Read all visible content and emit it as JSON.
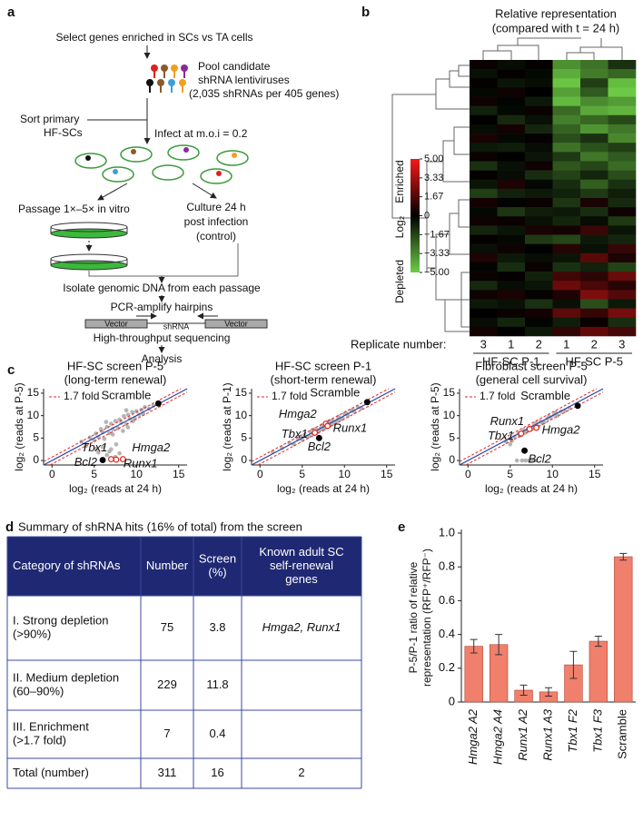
{
  "panel_labels": [
    "a",
    "b",
    "c",
    "d",
    "e"
  ],
  "diagram": {
    "select": "Select genes enriched in SCs vs TA cells",
    "pool": [
      "Pool candidate",
      "shRNA lentiviruses",
      "(2,035 shRNAs per 405 genes)"
    ],
    "sort": [
      "Sort primary",
      "HF-SCs"
    ],
    "infect": "Infect at m.o.i = 0.2",
    "passage": "Passage 1×–5× in vitro",
    "culture": [
      "Culture 24 h",
      "post infection",
      "(control)"
    ],
    "isolate": "Isolate genomic DNA from each passage",
    "pcr": "PCR-amplify hairpins",
    "construct": [
      "Vector",
      "shRNA",
      "Vector"
    ],
    "sequencing": "High-throughput sequencing",
    "analysis": "Analysis"
  },
  "chart_data": [
    {
      "type": "heatmap",
      "title": "Relative representation",
      "subtitle": "(compared with t = 24 h)",
      "column_axis_label": "Replicate number:",
      "columns": [
        "3",
        "1",
        "2",
        "1",
        "2",
        "3"
      ],
      "groups": [
        "HF-SC P-1",
        "HF-SC P-5"
      ],
      "clim": [
        -5,
        5
      ],
      "colorbar": {
        "title": "Log₂",
        "upper_label": "Enriched",
        "lower_label": "Depleted",
        "ticks": [
          {
            "value": 5,
            "label": "5.00"
          },
          {
            "value": 3.33,
            "label": "3.33"
          },
          {
            "value": 1.67,
            "label": "1.67"
          },
          0,
          {
            "value": -1.67,
            "label": "−1.67"
          },
          {
            "value": -3.33,
            "label": "−3.33"
          },
          {
            "value": -5,
            "label": "−5.00"
          }
        ]
      },
      "values": [
        [
          0.2,
          -0.3,
          0.1,
          -3.5,
          -2.8,
          -1.2
        ],
        [
          -0.4,
          0.1,
          -0.2,
          -4.2,
          -3.0,
          -2.5
        ],
        [
          0.1,
          -0.5,
          -0.3,
          -4.8,
          -1.5,
          -4.6
        ],
        [
          -0.2,
          0.3,
          0.0,
          -3.9,
          -2.2,
          -4.9
        ],
        [
          0.3,
          -0.1,
          -0.6,
          -4.5,
          -3.4,
          -3.8
        ],
        [
          -0.8,
          -0.2,
          0.2,
          -2.6,
          -4.1,
          -4.4
        ],
        [
          0.0,
          -1.0,
          -0.4,
          -3.1,
          -2.5,
          -1.8
        ],
        [
          -0.3,
          0.4,
          -0.9,
          -2.4,
          -3.6,
          -2.9
        ],
        [
          0.5,
          -0.2,
          0.1,
          -1.9,
          -1.2,
          -3.3
        ],
        [
          -0.6,
          -0.7,
          -0.3,
          -2.8,
          -2.0,
          -1.5
        ],
        [
          0.2,
          0.0,
          -0.5,
          -1.4,
          -2.9,
          -2.2
        ],
        [
          -1.2,
          -0.4,
          0.3,
          -2.1,
          -1.7,
          -2.6
        ],
        [
          0.1,
          -0.3,
          -1.1,
          -1.6,
          -0.9,
          -1.9
        ],
        [
          -0.5,
          0.6,
          -0.2,
          -1.1,
          -2.3,
          -1.2
        ],
        [
          -1.5,
          -0.8,
          -0.6,
          -0.8,
          -1.4,
          -0.7
        ],
        [
          0.4,
          -0.1,
          0.2,
          -1.3,
          0.5,
          -1.0
        ],
        [
          -0.2,
          -1.3,
          -0.7,
          -0.6,
          -1.1,
          0.3
        ],
        [
          0.3,
          0.2,
          -0.4,
          -0.9,
          -0.3,
          -1.4
        ],
        [
          -0.9,
          -0.5,
          0.5,
          0.4,
          1.2,
          -0.5
        ],
        [
          0.1,
          -0.2,
          -1.4,
          -1.7,
          -0.6,
          -0.9
        ],
        [
          -0.4,
          0.3,
          0.0,
          0.8,
          -0.4,
          1.1
        ],
        [
          0.6,
          -0.6,
          -0.3,
          -0.5,
          1.8,
          0.6
        ],
        [
          -0.1,
          -1.1,
          0.2,
          -1.2,
          -0.8,
          -1.6
        ],
        [
          0.2,
          0.1,
          -0.8,
          1.3,
          0.9,
          2.1
        ],
        [
          -1.0,
          -0.3,
          -0.5,
          2.2,
          1.5,
          0.8
        ],
        [
          0.3,
          0.5,
          0.1,
          0.6,
          2.6,
          1.7
        ],
        [
          -0.6,
          -0.4,
          -1.2,
          -0.4,
          -1.9,
          -0.6
        ],
        [
          0.0,
          0.2,
          0.4,
          1.9,
          1.1,
          2.4
        ],
        [
          -0.3,
          -0.9,
          -0.1,
          -0.7,
          0.2,
          -1.1
        ],
        [
          0.4,
          0.0,
          -0.6,
          1.0,
          2.0,
          1.4
        ]
      ]
    },
    {
      "type": "scatter",
      "title": "HF-SC screen P-5",
      "subtitle": "(long-term renewal)",
      "xlabel": "log₂ (reads at 24 h)",
      "ylabel": "log₂ (reads at P-5)",
      "xlim": [
        -1,
        16
      ],
      "ylim": [
        -1,
        16
      ],
      "xticks": [
        0,
        5,
        10,
        15
      ],
      "yticks": [
        0,
        5,
        10,
        15
      ],
      "identity_color": "#2a45a8",
      "fold": {
        "value": 1.7,
        "label": "1.7 fold",
        "color": "#e02424"
      },
      "points": {
        "color": "#b5b5b5",
        "x": [
          3.5,
          4,
          4.5,
          5,
          5.2,
          5.5,
          5.8,
          6,
          6.2,
          6.5,
          6.8,
          7,
          7.2,
          7.5,
          7.8,
          8,
          8.2,
          8.5,
          8.8,
          9,
          9.2,
          9.5,
          9.8,
          10,
          10.3,
          10.6,
          11,
          11.5,
          12,
          5.5,
          6.5,
          7,
          7.5,
          8,
          6,
          6.8,
          7.6,
          5.2,
          9,
          8.4,
          10.8,
          7.2,
          6.4,
          8.8,
          9.6
        ],
        "y": [
          4.2,
          3.2,
          5.1,
          4.5,
          6,
          5.2,
          7,
          6.3,
          4.8,
          7.5,
          6.1,
          8.2,
          7,
          8.8,
          7.2,
          9.1,
          8.4,
          9.9,
          8.1,
          10.2,
          9.3,
          10.8,
          9.5,
          11,
          10.2,
          11.3,
          11.9,
          11.5,
          12.2,
          1.8,
          1.2,
          2.5,
          0.8,
          1.6,
          3,
          2,
          3.6,
          2.6,
          7.4,
          6.6,
          10.4,
          5.8,
          8.6,
          11.2,
          8.8
        ]
      },
      "highlights": [
        {
          "name": "Scramble",
          "x": 12.6,
          "y": 12.7,
          "color": "#000000",
          "filled": true
        },
        {
          "name": "Tbx1",
          "x": 7,
          "y": 0.3,
          "color": "#e03020",
          "filled": false
        },
        {
          "name": "Hmga2",
          "x": 8.4,
          "y": 0.3,
          "color": "#e03020",
          "filled": false
        },
        {
          "name": "Runx1",
          "x": 7.6,
          "y": 0.2,
          "color": "#e03020",
          "filled": false
        },
        {
          "name": "Bcl2",
          "x": 6,
          "y": 0.1,
          "color": "#000000",
          "filled": true
        }
      ]
    },
    {
      "type": "scatter",
      "title": "HF-SC screen P-1",
      "subtitle": "(short-term renewal)",
      "xlabel": "log₂ (reads at 24 h)",
      "ylabel": "log₂ (reads at P-1)",
      "xlim": [
        -1,
        16
      ],
      "ylim": [
        -1,
        16
      ],
      "xticks": [
        0,
        5,
        10,
        15
      ],
      "yticks": [
        0,
        5,
        10,
        15
      ],
      "identity_color": "#2a45a8",
      "fold": {
        "value": 1.7,
        "label": "1.7 fold",
        "color": "#e02424"
      },
      "points": {
        "color": "#b5b5b5",
        "x": [
          4,
          4.5,
          5,
          5.3,
          5.6,
          6,
          6.3,
          6.6,
          7,
          7.3,
          7.6,
          8,
          8.3,
          8.6,
          9,
          9.3,
          9.6,
          10,
          10.4,
          10.8,
          11.2,
          11.6,
          12,
          5.8,
          6.8,
          7.8,
          8.8,
          9.8,
          6.2,
          7.2,
          8.2,
          9.2,
          10.2,
          3.5,
          2.6,
          1.5,
          4.8,
          7.4,
          8.5,
          11
        ],
        "y": [
          3.6,
          4.8,
          4.6,
          5.6,
          5.2,
          6.3,
          5.8,
          7,
          6.7,
          7.8,
          7.1,
          8.5,
          7.9,
          9,
          8.6,
          9.8,
          9.2,
          10.4,
          10,
          11.1,
          10.8,
          11.9,
          11.6,
          5.4,
          6.2,
          7.4,
          8.2,
          9.4,
          6.8,
          7.2,
          8.8,
          9.1,
          10.6,
          3.9,
          2.8,
          1.9,
          5.2,
          6.9,
          8.1,
          11.3
        ]
      },
      "highlights": [
        {
          "name": "Scramble",
          "x": 12.7,
          "y": 13,
          "color": "#000000",
          "filled": true
        },
        {
          "name": "Hmga2",
          "x": 7.8,
          "y": 8.2,
          "color": "#e03020",
          "filled": false
        },
        {
          "name": "Tbx1",
          "x": 6.5,
          "y": 6.2,
          "color": "#e03020",
          "filled": false
        },
        {
          "name": "Runx1",
          "x": 8,
          "y": 7.7,
          "color": "#e03020",
          "filled": false
        },
        {
          "name": "Bcl2",
          "x": 7,
          "y": 5,
          "color": "#000000",
          "filled": true
        }
      ]
    },
    {
      "type": "scatter",
      "title": "Fibroblast screen P-5",
      "subtitle": "(general cell survival)",
      "xlabel": "log₂ (reads at 24 h)",
      "ylabel": "log₂ (reads at P-5)",
      "xlim": [
        -1,
        16
      ],
      "ylim": [
        -1,
        16
      ],
      "xticks": [
        0,
        5,
        10,
        15
      ],
      "yticks": [
        0,
        5,
        10,
        15
      ],
      "identity_color": "#2a45a8",
      "fold": {
        "value": 1.7,
        "label": "1.7 fold",
        "color": "#e02424"
      },
      "points": {
        "color": "#b5b5b5",
        "x": [
          4.5,
          5,
          5.5,
          6,
          6.3,
          6.6,
          7,
          7.3,
          7.6,
          8,
          8.3,
          8.6,
          9,
          9.4,
          9.8,
          10.2,
          10.6,
          11,
          11.5,
          12,
          5.2,
          6.8,
          7.8,
          8.8,
          9.6,
          6.1,
          7.1,
          8.1,
          5.8,
          6.4,
          6.8,
          7.2,
          7.6,
          8,
          5,
          10.4
        ],
        "y": [
          4.2,
          4.9,
          5.3,
          6.1,
          5.7,
          6.8,
          6.6,
          7.4,
          7,
          8.1,
          7.6,
          8.7,
          8.5,
          9.3,
          9.6,
          10.2,
          10,
          10.9,
          11.1,
          11.7,
          4.4,
          6.2,
          7.8,
          8.3,
          9.9,
          5.5,
          7.1,
          8.4,
          0,
          0,
          0,
          0,
          0,
          0,
          3.6,
          10.7
        ]
      },
      "highlights": [
        {
          "name": "Scramble",
          "x": 13,
          "y": 12.2,
          "color": "#000000",
          "filled": true
        },
        {
          "name": "Runx1",
          "x": 7.3,
          "y": 7,
          "color": "#e03020",
          "filled": false
        },
        {
          "name": "Hmga2",
          "x": 8.1,
          "y": 7.3,
          "color": "#e03020",
          "filled": false
        },
        {
          "name": "Tbx1",
          "x": 6.3,
          "y": 6,
          "color": "#e03020",
          "filled": false
        },
        {
          "name": "Bcl2",
          "x": 6.7,
          "y": 2.2,
          "color": "#000000",
          "filled": true
        }
      ]
    },
    {
      "type": "bar",
      "ylabel": [
        "P-5/P-1 ratio of relative",
        "representation (RFP⁺/RFP⁻)"
      ],
      "categories": [
        "Hmga2 A2",
        "Hmga2 A4",
        "Runx1 A2",
        "Runx1 A3",
        "Tbx1 F2",
        "Tbx1 F3",
        "Scramble"
      ],
      "values": [
        0.33,
        0.34,
        0.07,
        0.06,
        0.22,
        0.36,
        0.86
      ],
      "errors": [
        0.04,
        0.06,
        0.03,
        0.025,
        0.08,
        0.03,
        0.02
      ],
      "color": "#f0806c",
      "ylim": [
        0,
        1
      ],
      "yticks": [
        0,
        0.2,
        0.4,
        0.6,
        0.8,
        {
          "value": 1,
          "label": "1.0"
        }
      ]
    }
  ],
  "table": {
    "title": "Summary of shRNA hits (16% of total) from the screen",
    "header": [
      "Category of shRNAs",
      "Number",
      [
        "Screen",
        "(%)"
      ],
      [
        "Known adult SC",
        "self-renewal",
        "genes"
      ]
    ],
    "rows": [
      [
        [
          "I. Strong depletion",
          "(>90%)"
        ],
        75,
        3.8,
        "Hmga2, Runx1"
      ],
      [
        [
          "II. Medium depletion",
          "(60–90%)"
        ],
        229,
        11.8,
        null
      ],
      [
        [
          "III. Enrichment",
          "(>1.7 fold)"
        ],
        7,
        0.4,
        null
      ],
      [
        "Total (number)",
        311,
        16,
        2
      ]
    ]
  }
}
